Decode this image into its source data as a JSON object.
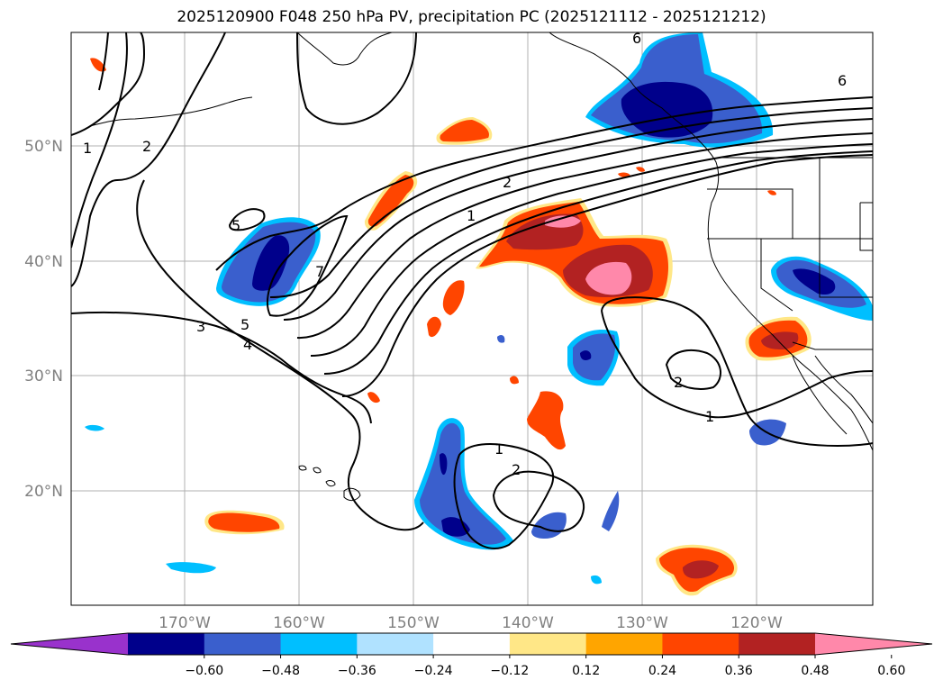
{
  "title": "2025120900 F048 250 hPa PV, precipitation PC (2025121112 - 2025121212)",
  "map": {
    "lat_labels": [
      "50°N",
      "40°N",
      "30°N",
      "20°N"
    ],
    "lon_labels": [
      "170°W",
      "160°W",
      "150°W",
      "140°W",
      "130°W",
      "120°W"
    ],
    "contour_labels": {
      "c1a": "1",
      "c2a": "2",
      "c5a": "5",
      "c7": "7",
      "c3": "3",
      "c5b": "5",
      "c4": "4",
      "c2b": "2",
      "c1b": "1",
      "c6a": "6",
      "c6b": "6",
      "c2c": "2",
      "c1c": "1",
      "c1d": "1",
      "c2d": "2"
    },
    "grid": true,
    "contour_color": "#000000",
    "coastline_color": "#000000"
  },
  "colorbar": {
    "ticks": [
      "−0.60",
      "−0.48",
      "−0.36",
      "−0.24",
      "−0.12",
      "0.12",
      "0.24",
      "0.36",
      "0.48",
      "0.60"
    ],
    "colors": [
      "#9932cc",
      "#00008b",
      "#3a5fcd",
      "#00bfff",
      "#b0e2ff",
      "#ffffff",
      "#ffe787",
      "#ffa500",
      "#ff4500",
      "#b22222",
      "#ff88aa"
    ],
    "extend": "both"
  }
}
